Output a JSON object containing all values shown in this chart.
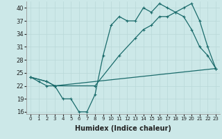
{
  "xlabel": "Humidex (Indice chaleur)",
  "bg_color": "#cce8e8",
  "grid_color": "#b8d8d8",
  "line_color": "#1a6b6b",
  "ylim": [
    15.5,
    41.5
  ],
  "xlim": [
    -0.5,
    23.5
  ],
  "yticks": [
    16,
    19,
    22,
    25,
    28,
    31,
    34,
    37,
    40
  ],
  "xticks": [
    0,
    1,
    2,
    3,
    4,
    5,
    6,
    7,
    8,
    9,
    10,
    11,
    12,
    13,
    14,
    15,
    16,
    17,
    18,
    19,
    20,
    21,
    22,
    23
  ],
  "line1_x": [
    0,
    1,
    2,
    3,
    4,
    5,
    6,
    7,
    8,
    9,
    10,
    11,
    12,
    13,
    14,
    15,
    16,
    17,
    18,
    19,
    20,
    21,
    22,
    23
  ],
  "line1_y": [
    24,
    23,
    22,
    22,
    19,
    19,
    16,
    16,
    20,
    29,
    36,
    38,
    37,
    37,
    40,
    39,
    41,
    40,
    39,
    38,
    35,
    31,
    29,
    26
  ],
  "line2_x": [
    0,
    2,
    3,
    8,
    11,
    13,
    14,
    15,
    16,
    17,
    18,
    19,
    20,
    21,
    22,
    23
  ],
  "line2_y": [
    24,
    23,
    22,
    22,
    29,
    33,
    35,
    36,
    38,
    38,
    39,
    40,
    41,
    37,
    31,
    26
  ],
  "line3_x": [
    0,
    2,
    3,
    23
  ],
  "line3_y": [
    24,
    23,
    22,
    26
  ]
}
